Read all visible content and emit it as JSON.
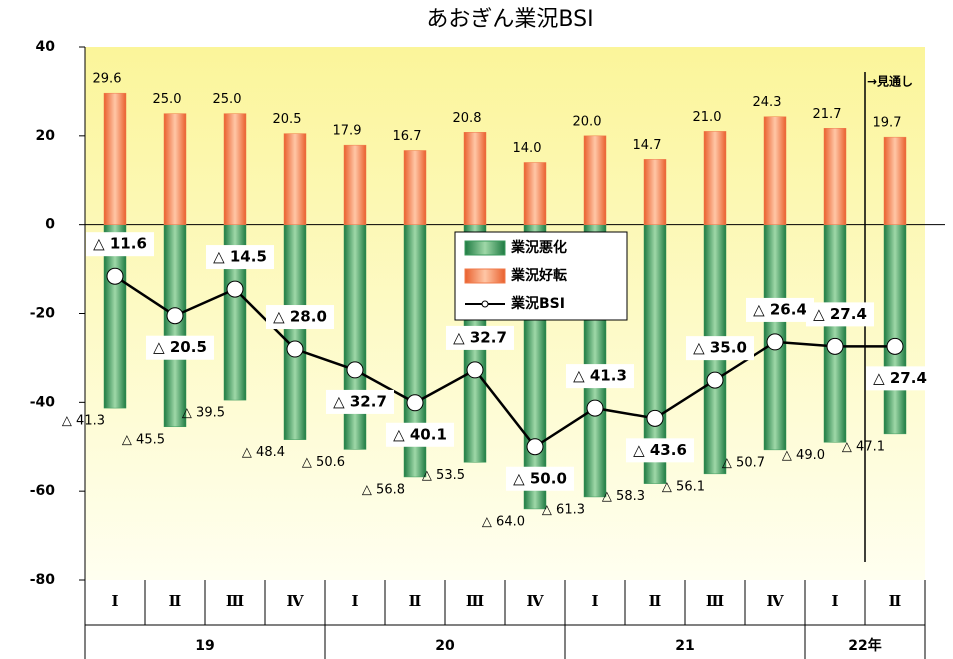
{
  "chart_data": {
    "type": "bar-line",
    "title": "あおぎん業況BSI",
    "annotation": "→見通し",
    "groups": [
      {
        "label": "19",
        "categories": [
          "Ⅰ",
          "Ⅱ",
          "Ⅲ",
          "Ⅳ"
        ]
      },
      {
        "label": "20",
        "categories": [
          "Ⅰ",
          "Ⅱ",
          "Ⅲ",
          "Ⅳ"
        ]
      },
      {
        "label": "21",
        "categories": [
          "Ⅰ",
          "Ⅱ",
          "Ⅲ",
          "Ⅳ"
        ]
      },
      {
        "label": "22年",
        "categories": [
          "Ⅰ",
          "Ⅱ"
        ]
      }
    ],
    "ylim": [
      -80,
      40
    ],
    "yticks": [
      -80,
      -60,
      -40,
      -20,
      0,
      20,
      40
    ],
    "series": [
      {
        "name": "業況悪化",
        "type": "bar",
        "color": "#3a9a5c",
        "values": [
          -41.3,
          -45.5,
          -39.5,
          -48.4,
          -50.6,
          -56.8,
          -53.5,
          -64.0,
          -61.3,
          -58.3,
          -56.1,
          -50.7,
          -49.0,
          -47.1
        ],
        "value_labels": [
          "△ 41.3",
          "△ 45.5",
          "△ 39.5",
          "△ 48.4",
          "△ 50.6",
          "△ 56.8",
          "△ 53.5",
          "△ 64.0",
          "△ 61.3",
          "△ 58.3",
          "△ 56.1",
          "△ 50.7",
          "△ 49.0",
          "△ 47.1"
        ]
      },
      {
        "name": "業況好転",
        "type": "bar",
        "color": "#f07a4a",
        "values": [
          29.6,
          25.0,
          25.0,
          20.5,
          17.9,
          16.7,
          20.8,
          14.0,
          20.0,
          14.7,
          21.0,
          24.3,
          21.7,
          19.7
        ],
        "value_labels": [
          "29.6",
          "25.0",
          "25.0",
          "20.5",
          "17.9",
          "16.7",
          "20.8",
          "14.0",
          "20.0",
          "14.7",
          "21.0",
          "24.3",
          "21.7",
          "19.7"
        ]
      },
      {
        "name": "業況BSI",
        "type": "line",
        "color": "#000000",
        "values": [
          -11.6,
          -20.5,
          -14.5,
          -28.0,
          -32.7,
          -40.1,
          -32.7,
          -50.0,
          -41.3,
          -43.6,
          -35.0,
          -26.4,
          -27.4,
          -27.4
        ],
        "value_labels": [
          "△ 11.6",
          "△ 20.5",
          "△ 14.5",
          "△ 28.0",
          "△ 32.7",
          "△ 40.1",
          "△ 32.7",
          "△ 50.0",
          "△ 41.3",
          "△ 43.6",
          "△ 35.0",
          "△ 26.4",
          "△ 27.4",
          "△ 27.4"
        ]
      }
    ]
  }
}
